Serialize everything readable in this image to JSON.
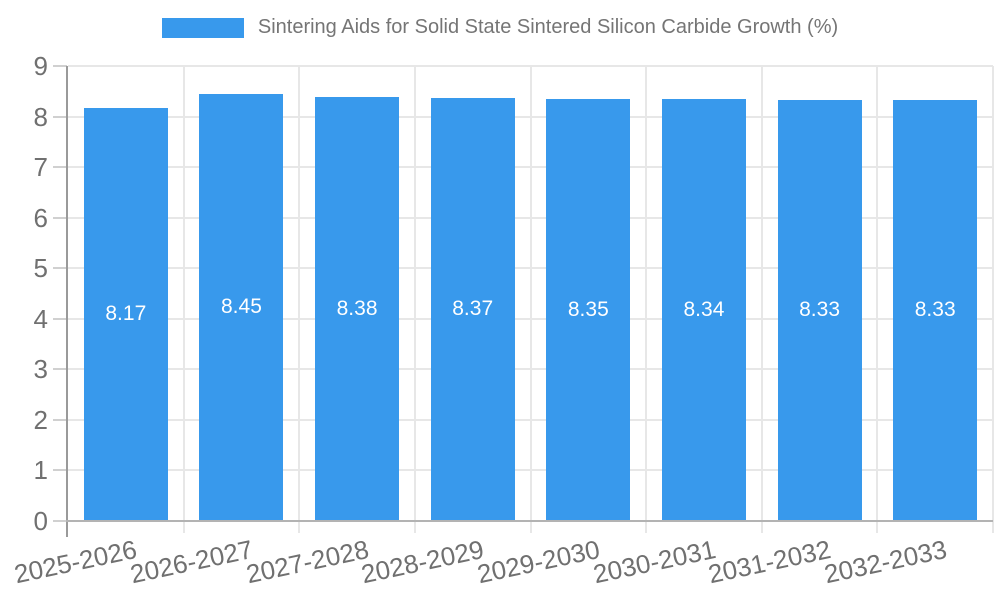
{
  "chart_data": {
    "type": "bar",
    "title": "Sintering Aids for Solid State Sintered Silicon Carbide Growth (%)",
    "legend": [
      "Sintering Aids for Solid State Sintered Silicon Carbide Growth (%)"
    ],
    "legend_position": "top-center",
    "categories": [
      "2025-2026",
      "2026-2027",
      "2027-2028",
      "2028-2029",
      "2029-2030",
      "2030-2031",
      "2031-2032",
      "2032-2033"
    ],
    "values": [
      8.17,
      8.45,
      8.38,
      8.37,
      8.35,
      8.34,
      8.33,
      8.33
    ],
    "value_labels": [
      "8.17",
      "8.45",
      "8.38",
      "8.37",
      "8.35",
      "8.34",
      "8.33",
      "8.33"
    ],
    "value_label_position": "center-of-bar",
    "xlabel": "",
    "ylabel": "",
    "ylim": [
      0,
      9
    ],
    "yticks": [
      "0",
      "1",
      "2",
      "3",
      "4",
      "5",
      "6",
      "7",
      "8",
      "9"
    ],
    "grid": true,
    "x_tick_rotation_deg": -12,
    "colors": {
      "bar": "#3899ec",
      "value_label": "#ffffff",
      "legend_text": "#757575",
      "axis_tick_text": "#707070",
      "gridline": "#e7e7e7",
      "y_axis_line": "#9a9a9a",
      "x_axis_line": "#b3b3b3"
    }
  }
}
